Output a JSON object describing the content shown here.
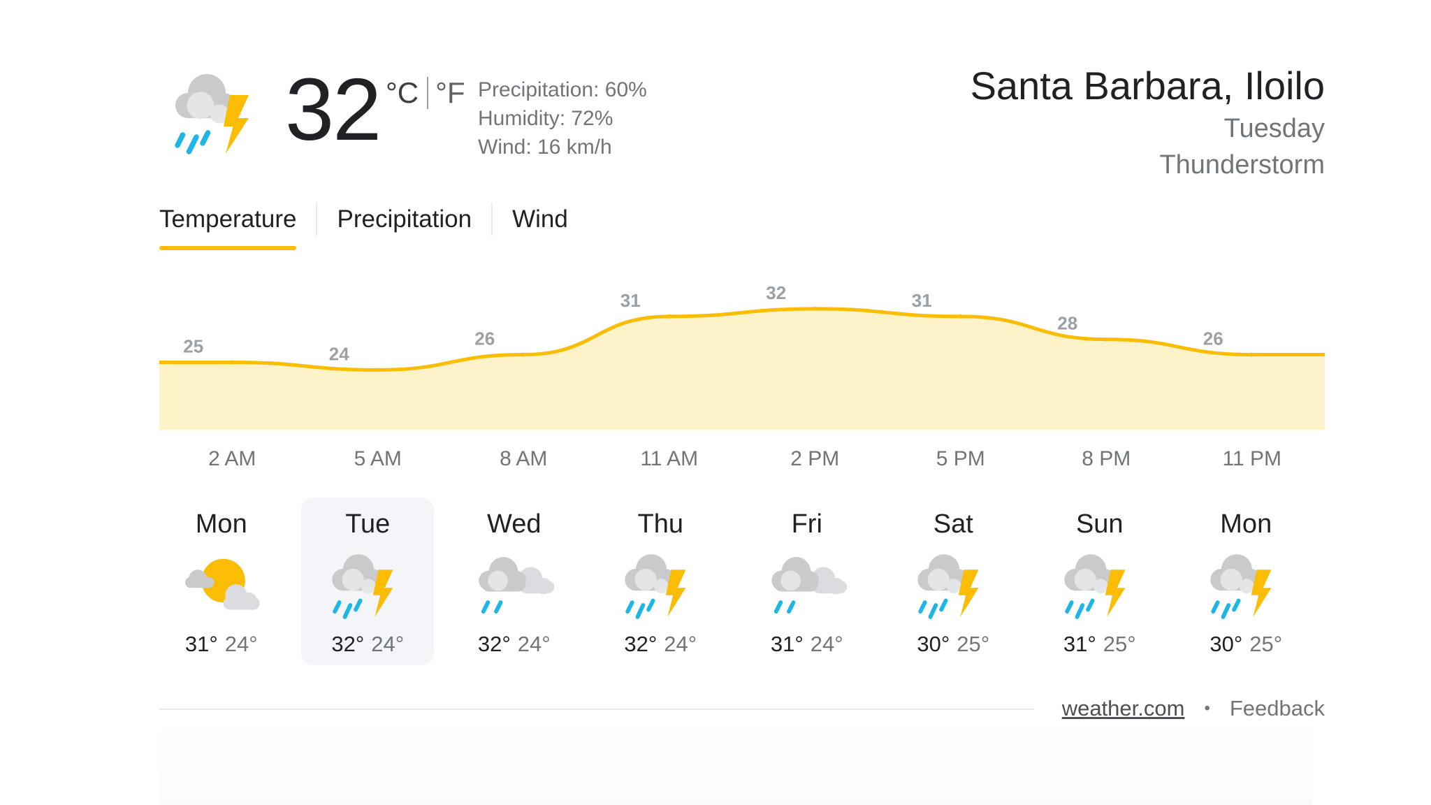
{
  "current": {
    "temperature": "32",
    "unit_c": "°C",
    "unit_f": "°F",
    "icon": "thunderstorm-icon",
    "precipitation": "Precipitation: 60%",
    "humidity": "Humidity: 72%",
    "wind": "Wind: 16 km/h"
  },
  "location": {
    "city": "Santa Barbara, Iloilo",
    "day": "Tuesday",
    "condition": "Thunderstorm"
  },
  "tabs": [
    {
      "label": "Temperature",
      "active": true
    },
    {
      "label": "Precipitation",
      "active": false
    },
    {
      "label": "Wind",
      "active": false
    }
  ],
  "chart_data": {
    "type": "area",
    "x": [
      "2 AM",
      "5 AM",
      "8 AM",
      "11 AM",
      "2 PM",
      "5 PM",
      "8 PM",
      "11 PM"
    ],
    "values": [
      25,
      24,
      26,
      31,
      32,
      31,
      28,
      26
    ],
    "labels": [
      "25",
      "24",
      "26",
      "31",
      "32",
      "31",
      "28",
      "26"
    ],
    "colors": {
      "line": "#fbbc04",
      "fill": "#fef3c8",
      "label": "#9aa0a6"
    }
  },
  "forecast": [
    {
      "day": "Mon",
      "icon": "partly-cloudy-icon",
      "high": "31°",
      "low": "24°",
      "selected": false
    },
    {
      "day": "Tue",
      "icon": "thunderstorm-icon",
      "high": "32°",
      "low": "24°",
      "selected": true
    },
    {
      "day": "Wed",
      "icon": "rain-cloud-icon",
      "high": "32°",
      "low": "24°",
      "selected": false
    },
    {
      "day": "Thu",
      "icon": "thunderstorm-icon",
      "high": "32°",
      "low": "24°",
      "selected": false
    },
    {
      "day": "Fri",
      "icon": "rain-cloud-icon",
      "high": "31°",
      "low": "24°",
      "selected": false
    },
    {
      "day": "Sat",
      "icon": "thunderstorm-icon",
      "high": "30°",
      "low": "25°",
      "selected": false
    },
    {
      "day": "Sun",
      "icon": "thunderstorm-icon",
      "high": "31°",
      "low": "25°",
      "selected": false
    },
    {
      "day": "Mon",
      "icon": "thunderstorm-icon",
      "high": "30°",
      "low": "25°",
      "selected": false
    }
  ],
  "footer": {
    "source": "weather.com",
    "separator": "•",
    "feedback": "Feedback"
  }
}
